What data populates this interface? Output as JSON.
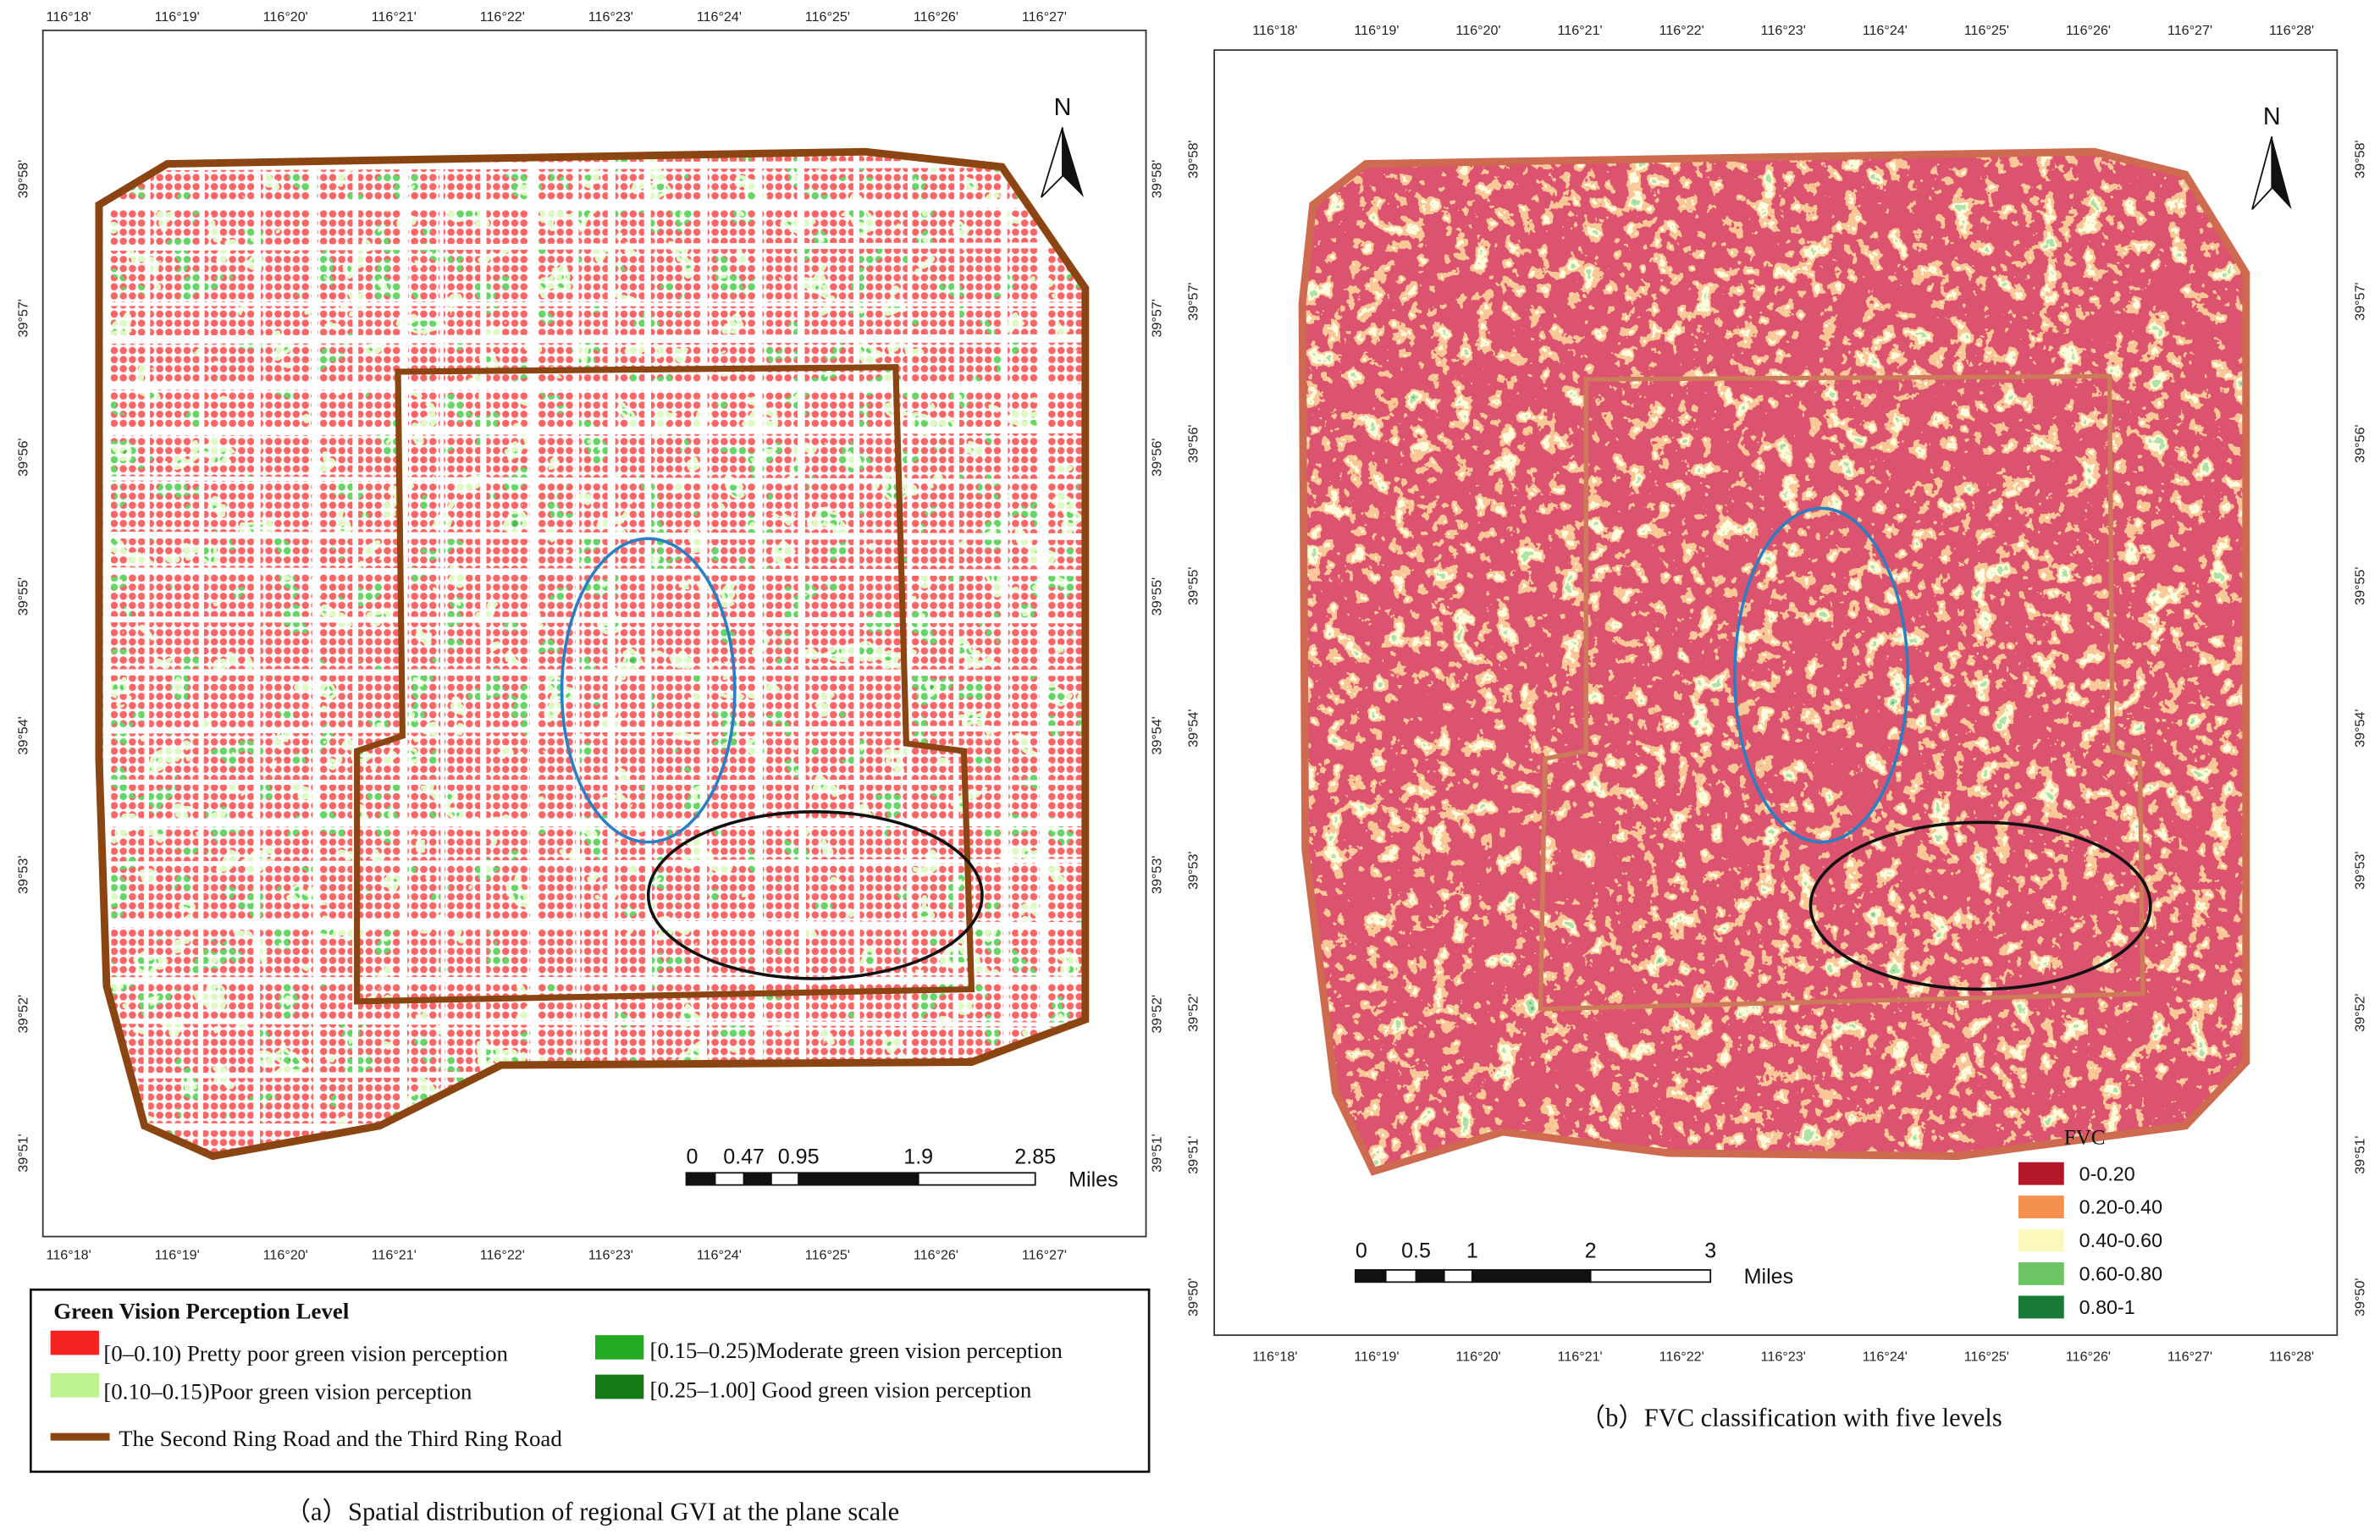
{
  "panel_a": {
    "caption": "（a）Spatial distribution of regional GVI at the plane scale",
    "north": "N",
    "top_ticks": [
      "116°18'",
      "116°19'",
      "116°20'",
      "116°21'",
      "116°22'",
      "116°23'",
      "116°24'",
      "116°25'",
      "116°26'",
      "116°27'"
    ],
    "bottom_ticks": [
      "116°18'",
      "116°19'",
      "116°20'",
      "116°21'",
      "116°22'",
      "116°23'",
      "116°24'",
      "116°25'",
      "116°26'",
      "116°27'"
    ],
    "left_ticks": [
      "39°58'",
      "39°57'",
      "39°56'",
      "39°55'",
      "39°54'",
      "39°53'",
      "39°52'",
      "39°51'"
    ],
    "right_ticks": [
      "39°58'",
      "39°57'",
      "39°56'",
      "39°55'",
      "39°54'",
      "39°53'",
      "39°52'",
      "39°51'"
    ],
    "scale_bar": {
      "labels": [
        "0",
        "0.47",
        "0.95",
        "1.9",
        "2.85"
      ],
      "unit": "Miles"
    },
    "legend": {
      "title": "Green Vision Perception Level",
      "items": [
        {
          "label": "[0–0.10) Pretty poor green vision perception",
          "color": "#f52222"
        },
        {
          "label": "[0.10–0.15)Poor green vision perception",
          "color": "#bdf28f"
        },
        {
          "label": "[0.15–0.25)Moderate green vision perception",
          "color": "#22aa22"
        },
        {
          "label": "[0.25–1.00] Good green vision perception",
          "color": "#157a15"
        }
      ],
      "line": {
        "label": "The Second Ring Road and the Third Ring Road",
        "color": "#8b4513"
      }
    }
  },
  "panel_b": {
    "caption": "（b）FVC classification with five levels",
    "north": "N",
    "top_ticks": [
      "116°18'",
      "116°19'",
      "116°20'",
      "116°21'",
      "116°22'",
      "116°23'",
      "116°24'",
      "116°25'",
      "116°26'",
      "116°27'",
      "116°28'"
    ],
    "bottom_ticks": [
      "116°18'",
      "116°19'",
      "116°20'",
      "116°21'",
      "116°22'",
      "116°23'",
      "116°24'",
      "116°25'",
      "116°26'",
      "116°27'",
      "116°28'"
    ],
    "left_ticks": [
      "39°58'",
      "39°57'",
      "39°56'",
      "39°55'",
      "39°54'",
      "39°53'",
      "39°52'",
      "39°51'",
      "39°50'"
    ],
    "right_ticks": [
      "39°58'",
      "39°57'",
      "39°56'",
      "39°55'",
      "39°54'",
      "39°53'",
      "39°52'",
      "39°51'",
      "39°50'"
    ],
    "scale_bar": {
      "labels": [
        "0",
        "0.5",
        "1",
        "2",
        "3"
      ],
      "unit": "Miles"
    },
    "legend": {
      "title": "FVC",
      "items": [
        {
          "label": "0-0.20",
          "color": "#b5172a"
        },
        {
          "label": "0.20-0.40",
          "color": "#f4914f"
        },
        {
          "label": "0.40-0.60",
          "color": "#fdf8bd"
        },
        {
          "label": "0.60-0.80",
          "color": "#6cc463"
        },
        {
          "label": "0.80-1",
          "color": "#1a7a3a"
        }
      ]
    }
  }
}
